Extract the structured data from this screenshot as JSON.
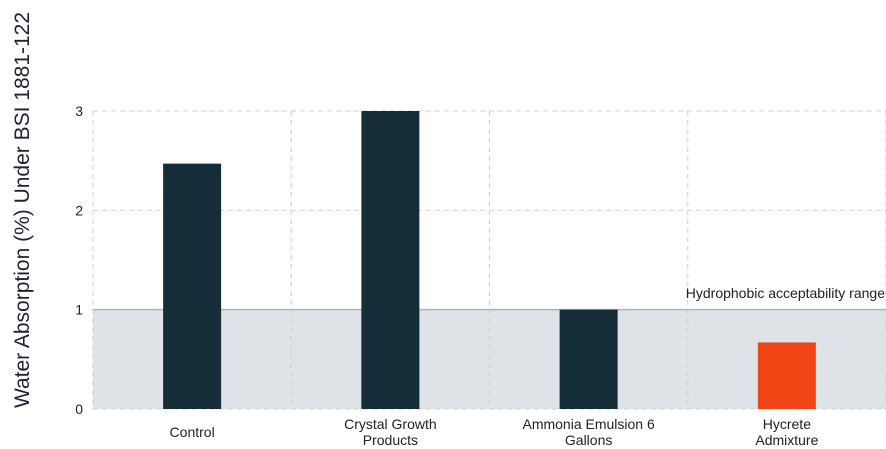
{
  "chart_data": {
    "type": "bar",
    "title": "",
    "xlabel": "",
    "ylabel": "Water Absorption (%) Under BSI 1881-122",
    "categories": [
      [
        "Control"
      ],
      [
        "Crystal Growth",
        "Products"
      ],
      [
        "Ammonia Emulsion 6",
        "Gallons"
      ],
      [
        "Hycrete",
        "Admixture"
      ]
    ],
    "values": [
      2.47,
      3.0,
      1.0,
      0.67
    ],
    "bar_colors": [
      "#142d38",
      "#142d38",
      "#142d38",
      "#f24516"
    ],
    "ylim": [
      0,
      3
    ],
    "yticks": [
      0,
      1,
      2,
      3
    ],
    "grid": true,
    "band": {
      "from": 0,
      "to": 1,
      "label": "Hydrophobic acceptability range",
      "color": "#dde3e7",
      "line_color": "#a9b5b8"
    }
  }
}
